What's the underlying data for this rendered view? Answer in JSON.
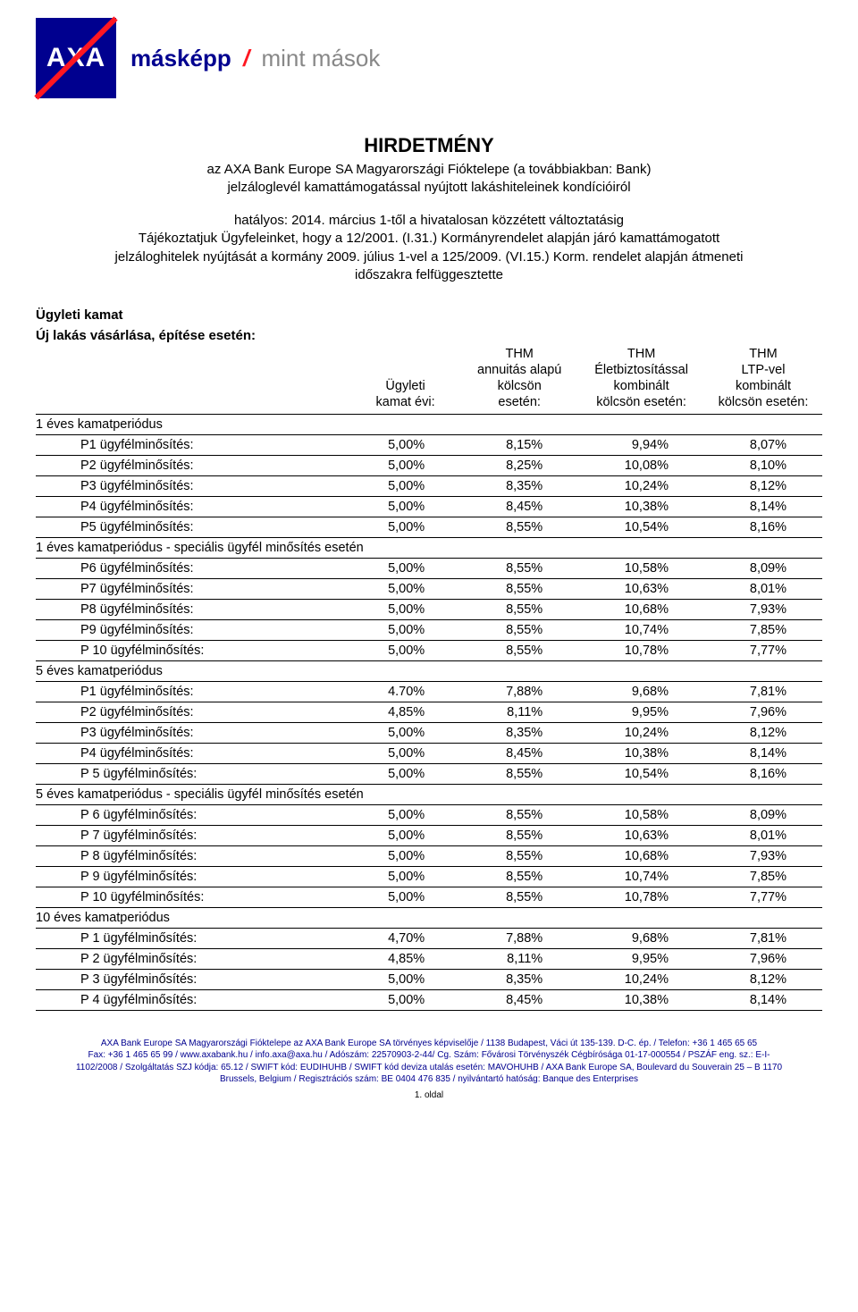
{
  "logo_text": "AXA",
  "tagline_bold": "másképp",
  "tagline_slash": "/",
  "tagline_rest": "mint mások",
  "title": "HIRDETMÉNY",
  "subtitle_line1": "az AXA Bank Europe SA Magyarországi Fióktelepe (a továbbiakban: Bank)",
  "subtitle_line2": "jelzáloglevél kamattámogatással nyújtott lakáshiteleinek kondícióiról",
  "dates_line1": "hatályos: 2014. március 1-től a hivatalosan közzétett változtatásig",
  "dates_line2": "Tájékoztatjuk Ügyfeleinket, hogy a 12/2001. (I.31.) Kormányrendelet alapján járó kamattámogatott",
  "dates_line3": "jelzáloghitelek nyújtását a kormány 2009. július 1-vel a 125/2009. (VI.15.) Korm. rendelet alapján átmeneti",
  "dates_line4": "időszakra felfüggesztette",
  "section1": "Ügyleti kamat",
  "section2": "Új lakás vásárlása, építése esetén:",
  "columns": {
    "c0": "",
    "c1": "Ügyleti\nkamat évi:",
    "c2": "THM\nannuitás alapú\nkölcsön\nesetén:",
    "c3": "THM\nÉletbiztosítással\nkombinált\nkölcsön esetén:",
    "c4": "THM\nLTP-vel\nkombinált\nkölcsön esetén:"
  },
  "groups": [
    {
      "title": "1 éves kamatperiódus",
      "rows": [
        {
          "label": "P1 ügyfélminősítés:",
          "c1": "5,00%",
          "c2": "8,15%",
          "c3": "9,94%",
          "c4": "8,07%"
        },
        {
          "label": "P2 ügyfélminősítés:",
          "c1": "5,00%",
          "c2": "8,25%",
          "c3": "10,08%",
          "c4": "8,10%"
        },
        {
          "label": "P3 ügyfélminősítés:",
          "c1": "5,00%",
          "c2": "8,35%",
          "c3": "10,24%",
          "c4": "8,12%"
        },
        {
          "label": "P4 ügyfélminősítés:",
          "c1": "5,00%",
          "c2": "8,45%",
          "c3": "10,38%",
          "c4": "8,14%"
        },
        {
          "label": "P5 ügyfélminősítés:",
          "c1": "5,00%",
          "c2": "8,55%",
          "c3": "10,54%",
          "c4": "8,16%"
        }
      ]
    },
    {
      "title": "1 éves kamatperiódus - speciális ügyfél minősítés esetén",
      "rows": [
        {
          "label": "P6 ügyfélminősítés:",
          "c1": "5,00%",
          "c2": "8,55%",
          "c3": "10,58%",
          "c4": "8,09%"
        },
        {
          "label": "P7 ügyfélminősítés:",
          "c1": "5,00%",
          "c2": "8,55%",
          "c3": "10,63%",
          "c4": "8,01%"
        },
        {
          "label": "P8 ügyfélminősítés:",
          "c1": "5,00%",
          "c2": "8,55%",
          "c3": "10,68%",
          "c4": "7,93%"
        },
        {
          "label": "P9 ügyfélminősítés:",
          "c1": "5,00%",
          "c2": "8,55%",
          "c3": "10,74%",
          "c4": "7,85%"
        },
        {
          "label": "P 10 ügyfélminősítés:",
          "c1": "5,00%",
          "c2": "8,55%",
          "c3": "10,78%",
          "c4": "7,77%"
        }
      ]
    },
    {
      "title": "5 éves kamatperiódus",
      "rows": [
        {
          "label": "P1 ügyfélminősítés:",
          "c1": "4.70%",
          "c2": "7,88%",
          "c3": "9,68%",
          "c4": "7,81%"
        },
        {
          "label": "P2 ügyfélminősítés:",
          "c1": "4,85%",
          "c2": "8,11%",
          "c3": "9,95%",
          "c4": "7,96%"
        },
        {
          "label": "P3 ügyfélminősítés:",
          "c1": "5,00%",
          "c2": "8,35%",
          "c3": "10,24%",
          "c4": "8,12%"
        },
        {
          "label": "P4 ügyfélminősítés:",
          "c1": "5,00%",
          "c2": "8,45%",
          "c3": "10,38%",
          "c4": "8,14%"
        },
        {
          "label": "P 5 ügyfélminősítés:",
          "c1": "5,00%",
          "c2": "8,55%",
          "c3": "10,54%",
          "c4": "8,16%"
        }
      ]
    },
    {
      "title": "5 éves kamatperiódus - speciális ügyfél minősítés esetén",
      "rows": [
        {
          "label": "P 6 ügyfélminősítés:",
          "c1": "5,00%",
          "c2": "8,55%",
          "c3": "10,58%",
          "c4": "8,09%"
        },
        {
          "label": "P 7 ügyfélminősítés:",
          "c1": "5,00%",
          "c2": "8,55%",
          "c3": "10,63%",
          "c4": "8,01%"
        },
        {
          "label": "P 8 ügyfélminősítés:",
          "c1": "5,00%",
          "c2": "8,55%",
          "c3": "10,68%",
          "c4": "7,93%"
        },
        {
          "label": "P 9 ügyfélminősítés:",
          "c1": "5,00%",
          "c2": "8,55%",
          "c3": "10,74%",
          "c4": "7,85%"
        },
        {
          "label": "P 10 ügyfélminősítés:",
          "c1": "5,00%",
          "c2": "8,55%",
          "c3": "10,78%",
          "c4": "7,77%"
        }
      ]
    },
    {
      "title": "10 éves kamatperiódus",
      "rows": [
        {
          "label": "P 1 ügyfélminősítés:",
          "c1": "4,70%",
          "c2": "7,88%",
          "c3": "9,68%",
          "c4": "7,81%"
        },
        {
          "label": "P 2 ügyfélminősítés:",
          "c1": "4,85%",
          "c2": "8,11%",
          "c3": "9,95%",
          "c4": "7,96%"
        },
        {
          "label": "P 3 ügyfélminősítés:",
          "c1": "5,00%",
          "c2": "8,35%",
          "c3": "10,24%",
          "c4": "8,12%"
        },
        {
          "label": "P 4 ügyfélminősítés:",
          "c1": "5,00%",
          "c2": "8,45%",
          "c3": "10,38%",
          "c4": "8,14%"
        }
      ]
    }
  ],
  "footer_line1": "AXA Bank Europe SA Magyarországi Fióktelepe az AXA Bank Europe SA törvényes képviselője / 1138 Budapest, Váci út 135-139. D-C. ép. / Telefon: +36 1 465 65 65",
  "footer_line2": "Fax: +36 1 465 65 99 / www.axabank.hu / info.axa@axa.hu / Adószám: 22570903-2-44/ Cg. Szám: Fővárosi Törvényszék Cégbírósága 01-17-000554 / PSZÁF eng. sz.: E-I-",
  "footer_line3": "1102/2008 / Szolgáltatás SZJ kódja: 65.12 / SWIFT kód: EUDIHUHB / SWIFT kód deviza utalás esetén: MAVOHUHB / AXA Bank Europe SA, Boulevard du Souverain 25 – B 1170",
  "footer_line4": "Brussels, Belgium / Regisztrációs szám: BE 0404 476 835 / nyilvántartó hatóság: Banque des Enterprises",
  "page_number": "1. oldal",
  "colors": {
    "brand_blue": "#00008f",
    "brand_red": "#ff1721",
    "text": "#000000",
    "tagline_grey": "#888888"
  }
}
